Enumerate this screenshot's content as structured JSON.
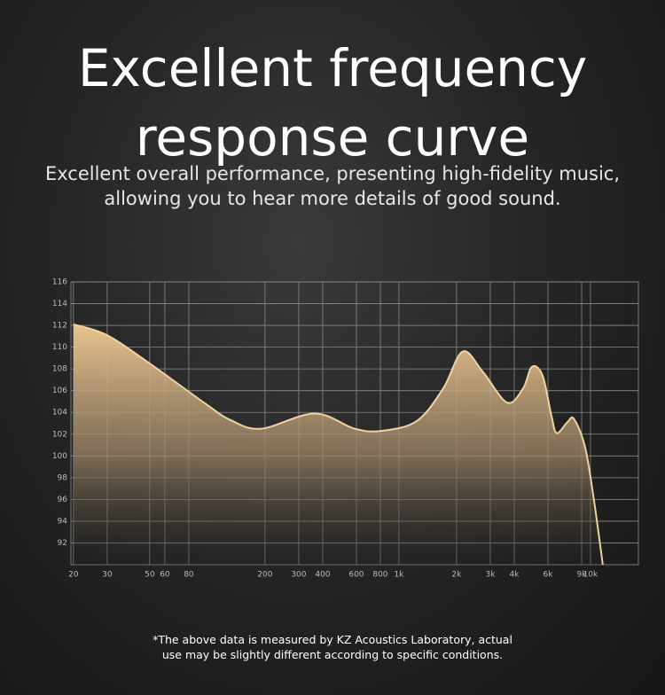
{
  "chart_data": {
    "type": "line",
    "title": "Excellent frequency response curve",
    "subtitle": "Excellent overall performance, presenting high-fidelity music, allowing you to hear more details of good sound.",
    "footnote": "*The above data is measured by KZ Acoustics Laboratory, actual use may be slightly different according to specific conditions.",
    "log_x": true,
    "grid": true,
    "xlim": [
      19.4,
      17800
    ],
    "ylim": [
      90,
      116
    ],
    "xticks": [
      20,
      30,
      50,
      60,
      80,
      200,
      300,
      400,
      600,
      800,
      {
        "value": 1000,
        "label": "1k"
      },
      {
        "value": 2000,
        "label": "2k"
      },
      {
        "value": 3000,
        "label": "3k"
      },
      {
        "value": 4000,
        "label": "4k"
      },
      {
        "value": 6000,
        "label": "6k"
      },
      {
        "value": 9000,
        "label": "9k"
      },
      {
        "value": 10000,
        "label": "10k"
      }
    ],
    "yticks": [
      92,
      94,
      96,
      98,
      100,
      102,
      104,
      106,
      108,
      110,
      112,
      114,
      116
    ],
    "series": [
      {
        "color": "#f0d2a0",
        "x": [
          20,
          30,
          50,
          96,
          132,
          191,
          363,
          588,
          807,
          1238,
          1703,
          2155,
          2752,
          3673,
          4450,
          4952,
          5623,
          6256,
          6670,
          7581,
          8200,
          9380,
          10440,
          11600
        ],
        "values": [
          112.1,
          111.1,
          108.5,
          104.9,
          103.3,
          102.5,
          103.9,
          102.5,
          102.3,
          103.2,
          106.2,
          109.6,
          107.7,
          104.9,
          106.2,
          108.2,
          107.4,
          103.7,
          102.1,
          103.1,
          103.4,
          100.8,
          95.9,
          90
        ]
      }
    ]
  }
}
